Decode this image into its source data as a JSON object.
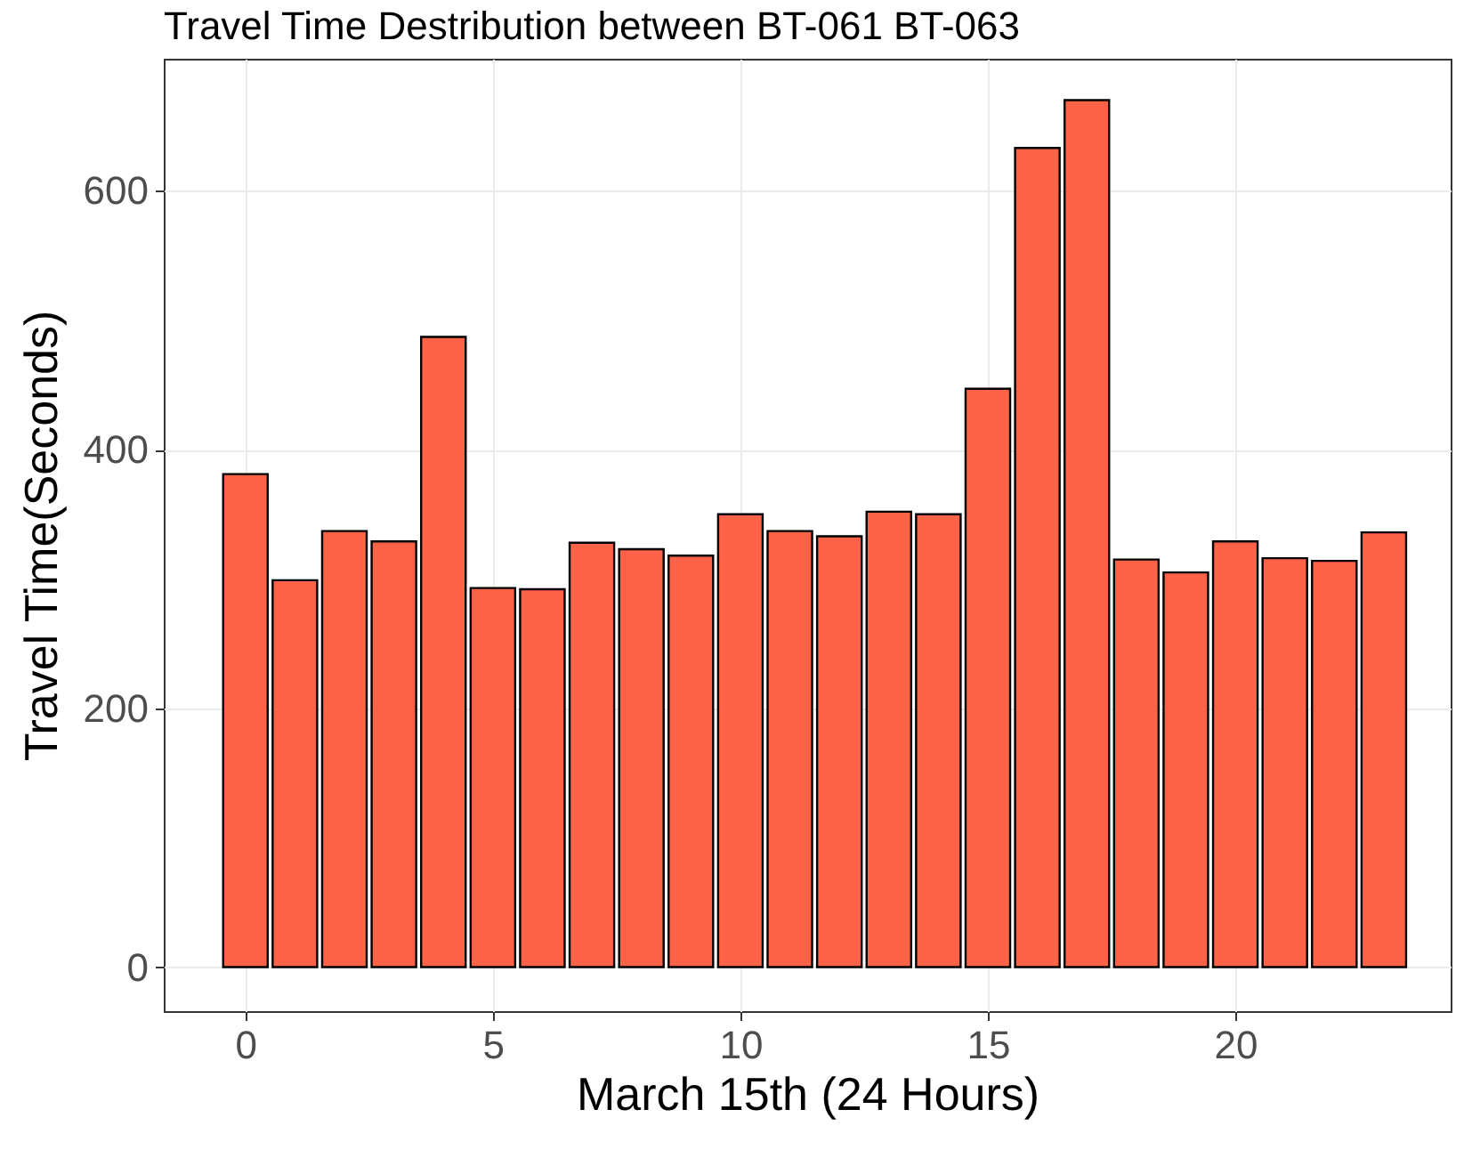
{
  "chart_data": {
    "type": "bar",
    "title": "Travel Time Destribution between BT-061 BT-063",
    "xlabel": "March 15th (24 Hours)",
    "ylabel": "Travel Time(Seconds)",
    "x": [
      0,
      1,
      2,
      3,
      4,
      5,
      6,
      7,
      8,
      9,
      10,
      11,
      12,
      13,
      14,
      15,
      16,
      17,
      18,
      19,
      20,
      21,
      22,
      23
    ],
    "series": [
      {
        "color": "#ff6347",
        "values": [
          381,
          299,
          337,
          329,
          487,
          293,
          292,
          328,
          323,
          318,
          350,
          337,
          333,
          352,
          350,
          447,
          633,
          670,
          315,
          305,
          329,
          316,
          314,
          336
        ]
      }
    ],
    "xlim": [
      -1.65,
      24.35
    ],
    "ylim": [
      -34,
      702
    ],
    "xticks": [
      0,
      5,
      10,
      15,
      20
    ],
    "yticks": [
      0,
      200,
      400,
      600
    ],
    "grid": true
  }
}
